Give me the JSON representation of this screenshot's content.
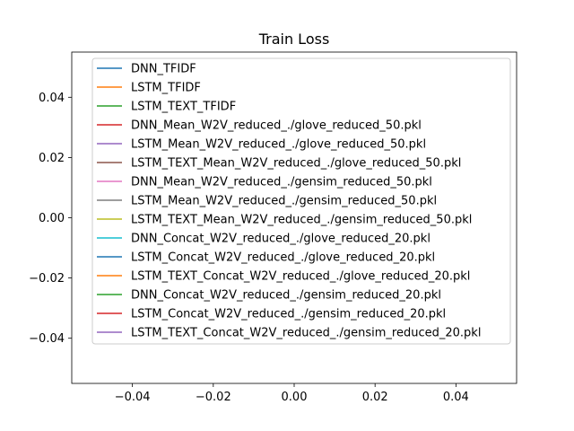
{
  "chart_data": {
    "type": "line",
    "title": "Train Loss",
    "xlabel": "",
    "ylabel": "",
    "xlim": [
      -0.055,
      0.055
    ],
    "ylim": [
      -0.055,
      0.055
    ],
    "x_ticks": [
      -0.04,
      -0.02,
      0.0,
      0.02,
      0.04
    ],
    "x_tick_labels": [
      "−0.04",
      "−0.02",
      "0.00",
      "0.02",
      "0.04"
    ],
    "y_ticks": [
      0.04,
      0.02,
      0.0,
      -0.02,
      -0.04
    ],
    "y_tick_labels": [
      "0.04",
      "0.02",
      "0.00",
      "−0.02",
      "−0.04"
    ],
    "grid": false,
    "legend_position": "top-center",
    "series": [
      {
        "name": "DNN_TFIDF",
        "color": "#1f77b4",
        "values": []
      },
      {
        "name": "LSTM_TFIDF",
        "color": "#ff7f0e",
        "values": []
      },
      {
        "name": "LSTM_TEXT_TFIDF",
        "color": "#2ca02c",
        "values": []
      },
      {
        "name": "DNN_Mean_W2V_reduced_./glove_reduced_50.pkl",
        "color": "#d62728",
        "values": []
      },
      {
        "name": "LSTM_Mean_W2V_reduced_./glove_reduced_50.pkl",
        "color": "#9467bd",
        "values": []
      },
      {
        "name": "LSTM_TEXT_Mean_W2V_reduced_./glove_reduced_50.pkl",
        "color": "#8c564b",
        "values": []
      },
      {
        "name": "DNN_Mean_W2V_reduced_./gensim_reduced_50.pkl",
        "color": "#e377c2",
        "values": []
      },
      {
        "name": "LSTM_Mean_W2V_reduced_./gensim_reduced_50.pkl",
        "color": "#7f7f7f",
        "values": []
      },
      {
        "name": "LSTM_TEXT_Mean_W2V_reduced_./gensim_reduced_50.pkl",
        "color": "#bcbd22",
        "values": []
      },
      {
        "name": "DNN_Concat_W2V_reduced_./glove_reduced_20.pkl",
        "color": "#17becf",
        "values": []
      },
      {
        "name": "LSTM_Concat_W2V_reduced_./glove_reduced_20.pkl",
        "color": "#1f77b4",
        "values": []
      },
      {
        "name": "LSTM_TEXT_Concat_W2V_reduced_./glove_reduced_20.pkl",
        "color": "#ff7f0e",
        "values": []
      },
      {
        "name": "DNN_Concat_W2V_reduced_./gensim_reduced_20.pkl",
        "color": "#2ca02c",
        "values": []
      },
      {
        "name": "LSTM_Concat_W2V_reduced_./gensim_reduced_20.pkl",
        "color": "#d62728",
        "values": []
      },
      {
        "name": "LSTM_TEXT_Concat_W2V_reduced_./gensim_reduced_20.pkl",
        "color": "#9467bd",
        "values": []
      }
    ]
  }
}
